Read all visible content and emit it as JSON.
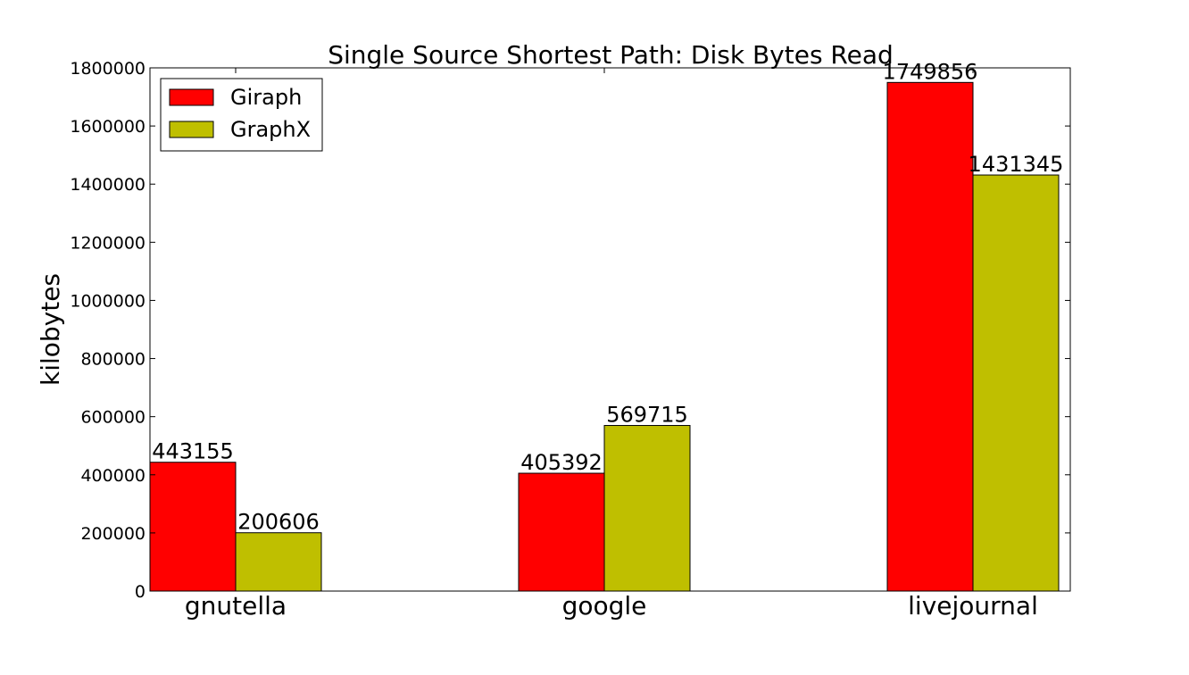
{
  "chart_data": {
    "type": "bar",
    "title": "Single Source Shortest Path: Disk Bytes Read",
    "xlabel": "",
    "ylabel": "kilobytes",
    "categories": [
      "gnutella",
      "google",
      "livejournal"
    ],
    "series": [
      {
        "name": "Giraph",
        "color": "#ff0000",
        "values": [
          443155,
          405392,
          1749856
        ]
      },
      {
        "name": "GraphX",
        "color": "#bfbf00",
        "values": [
          200606,
          569715,
          1431345
        ]
      }
    ],
    "ylim": [
      0,
      1800000
    ],
    "yticks": [
      0,
      200000,
      400000,
      600000,
      800000,
      1000000,
      1200000,
      1400000,
      1600000,
      1800000
    ],
    "data_labels": true,
    "legend_position": "top-left",
    "grid": false
  }
}
